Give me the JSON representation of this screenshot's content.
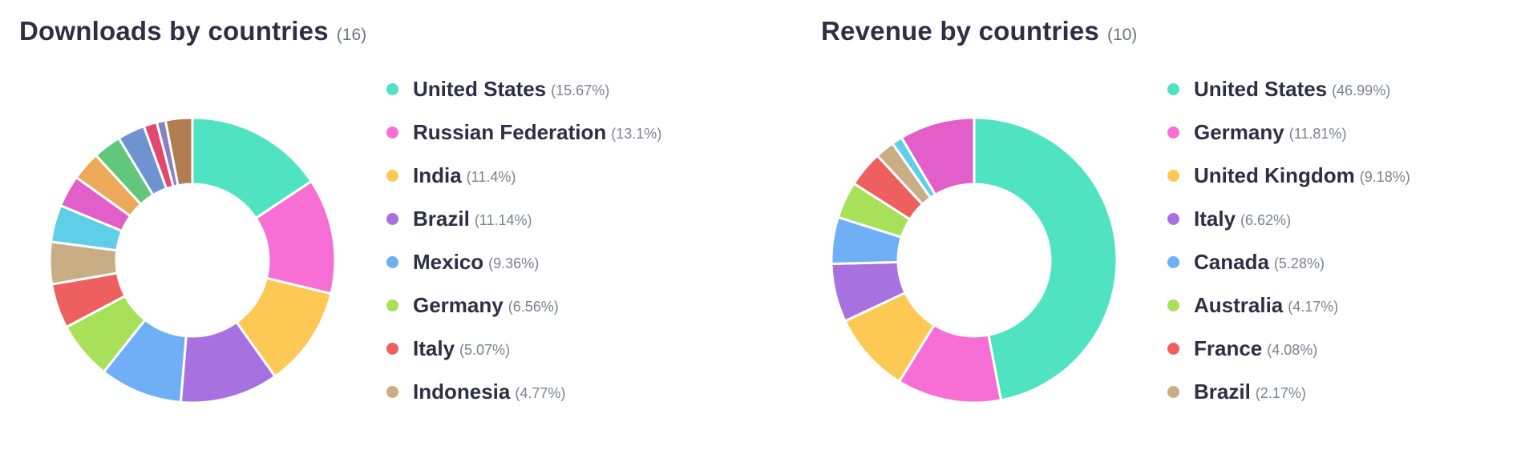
{
  "chart_data": [
    {
      "type": "pie",
      "title": "Downloads by countries",
      "count_label": "(16)",
      "categories": [
        "United States",
        "Russian Federation",
        "India",
        "Brazil",
        "Mexico",
        "Germany",
        "Italy",
        "Indonesia",
        "",
        "",
        "",
        "",
        "",
        "",
        "",
        ""
      ],
      "values": [
        15.67,
        13.1,
        11.4,
        11.14,
        9.36,
        6.56,
        5.07,
        4.77,
        4.2,
        3.6,
        3.3,
        3.2,
        3.1,
        1.5,
        1.0,
        3.03
      ],
      "colors": [
        "#50e3c2",
        "#f76fd4",
        "#fdc853",
        "#a772e0",
        "#6eaff5",
        "#a8e05a",
        "#ee5f5f",
        "#c9ae85",
        "#5ecfe6",
        "#e25ec8",
        "#eda95a",
        "#62c77a",
        "#6d94d1",
        "#e2476e",
        "#8a7fbf",
        "#b07c50"
      ],
      "legend": [
        {
          "name": "United States",
          "pct": "(15.67%)",
          "color": "#50e3c2"
        },
        {
          "name": "Russian Federation",
          "pct": "(13.1%)",
          "color": "#f76fd4"
        },
        {
          "name": "India",
          "pct": "(11.4%)",
          "color": "#fdc853"
        },
        {
          "name": "Brazil",
          "pct": "(11.14%)",
          "color": "#a772e0"
        },
        {
          "name": "Mexico",
          "pct": "(9.36%)",
          "color": "#6eaff5"
        },
        {
          "name": "Germany",
          "pct": "(6.56%)",
          "color": "#a8e05a"
        },
        {
          "name": "Italy",
          "pct": "(5.07%)",
          "color": "#ee5f5f"
        },
        {
          "name": "Indonesia",
          "pct": "(4.77%)",
          "color": "#c9ae85"
        }
      ],
      "legend_position": "right"
    },
    {
      "type": "pie",
      "title": "Revenue by countries",
      "count_label": "(10)",
      "categories": [
        "United States",
        "Germany",
        "United Kingdom",
        "Italy",
        "Canada",
        "Australia",
        "France",
        "Brazil",
        "",
        ""
      ],
      "values": [
        46.99,
        11.81,
        9.18,
        6.62,
        5.28,
        4.17,
        4.08,
        2.17,
        1.2,
        8.5
      ],
      "colors": [
        "#50e3c2",
        "#f76fd4",
        "#fdc853",
        "#a772e0",
        "#6eaff5",
        "#a8e05a",
        "#ee5f5f",
        "#c9ae85",
        "#5ecfe6",
        "#e25ec8"
      ],
      "legend": [
        {
          "name": "United States",
          "pct": "(46.99%)",
          "color": "#50e3c2"
        },
        {
          "name": "Germany",
          "pct": "(11.81%)",
          "color": "#f76fd4"
        },
        {
          "name": "United Kingdom",
          "pct": "(9.18%)",
          "color": "#fdc853"
        },
        {
          "name": "Italy",
          "pct": "(6.62%)",
          "color": "#a772e0"
        },
        {
          "name": "Canada",
          "pct": "(5.28%)",
          "color": "#6eaff5"
        },
        {
          "name": "Australia",
          "pct": "(4.17%)",
          "color": "#a8e05a"
        },
        {
          "name": "France",
          "pct": "(4.08%)",
          "color": "#ee5f5f"
        },
        {
          "name": "Brazil",
          "pct": "(2.17%)",
          "color": "#c9ae85"
        }
      ],
      "legend_position": "right"
    }
  ]
}
